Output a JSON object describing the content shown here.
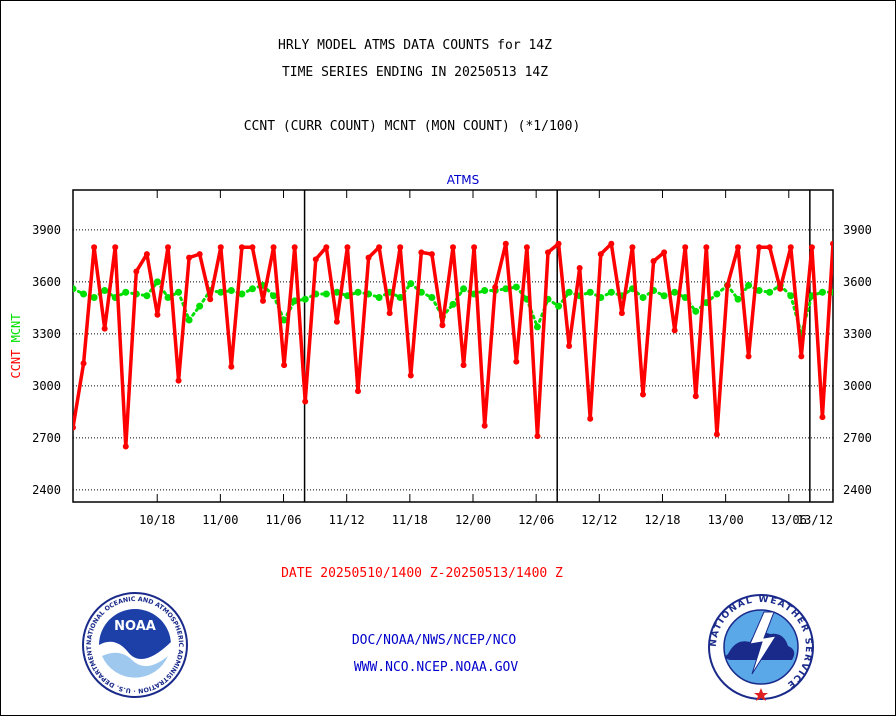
{
  "header": {
    "title_line1": "HRLY MODEL ATMS DATA COUNTS for 14Z",
    "title_line2": "TIME SERIES ENDING IN 20250513 14Z",
    "subtitle": "CCNT (CURR COUNT) MCNT (MON COUNT) (*1/100)"
  },
  "footer": {
    "date_range": "DATE 20250510/1400 Z-20250513/1400 Z",
    "org_line": "DOC/NOAA/NWS/NCEP/NCO",
    "url_line": "WWW.NCO.NCEP.NOAA.GOV"
  },
  "logos": {
    "left": {
      "name": "NOAA",
      "ring_text": "NATIONAL OCEANIC AND ATMOSPHERIC ADMINISTRATION · U.S. DEPARTMENT OF COMMERCE"
    },
    "right": {
      "ring_text": "NATIONAL WEATHER SERVICE"
    }
  },
  "chart_data": {
    "type": "line",
    "title": "ATMS",
    "ylabel_series1": "CCNT",
    "ylabel_series2": "MCNT",
    "ylim": [
      2330,
      4130
    ],
    "yticks": [
      2400,
      2700,
      3000,
      3300,
      3600,
      3900
    ],
    "x_range_hours": [
      -4,
      68.2
    ],
    "x_tick_labels": [
      "10/18",
      "11/00",
      "11/06",
      "11/12",
      "11/18",
      "12/00",
      "12/06",
      "12/12",
      "12/18",
      "13/00",
      "13/06",
      "13/12"
    ],
    "x_tick_hours": [
      4,
      10,
      16,
      22,
      28,
      34,
      40,
      46,
      52,
      58,
      64,
      70
    ],
    "day_boundary_hours": [
      18,
      42,
      66
    ],
    "grid": "horizontal-dotted",
    "colors": {
      "ccnt": "#ff0000",
      "mcnt": "#00e000",
      "title": "#0000cc",
      "axis": "#000000"
    },
    "series": [
      {
        "name": "CCNT",
        "color": "#ff0000",
        "values": [
          2760,
          3130,
          3800,
          3330,
          3800,
          2650,
          3660,
          3760,
          3410,
          3800,
          3030,
          3740,
          3760,
          3500,
          3800,
          3110,
          3800,
          3800,
          3490,
          3800,
          3120,
          3800,
          2910,
          3730,
          3800,
          3370,
          3800,
          2970,
          3740,
          3800,
          3420,
          3800,
          3060,
          3770,
          3760,
          3350,
          3800,
          3120,
          3800,
          2770,
          3570,
          3820,
          3140,
          3800,
          2710,
          3770,
          3820,
          3230,
          3680,
          2810,
          3760,
          3820,
          3420,
          3800,
          2950,
          3720,
          3770,
          3320,
          3800,
          2940,
          3800,
          2720,
          3580,
          3800,
          3170,
          3800,
          3800,
          3560,
          3800,
          3170,
          3800,
          2820,
          3820
        ]
      },
      {
        "name": "MCNT",
        "color": "#00e000",
        "values": [
          3560,
          3530,
          3510,
          3550,
          3510,
          3540,
          3530,
          3520,
          3600,
          3510,
          3540,
          3380,
          3460,
          3550,
          3540,
          3550,
          3530,
          3560,
          3580,
          3520,
          3380,
          3490,
          3500,
          3530,
          3530,
          3540,
          3520,
          3540,
          3530,
          3510,
          3540,
          3510,
          3590,
          3540,
          3510,
          3400,
          3470,
          3560,
          3530,
          3550,
          3550,
          3560,
          3570,
          3500,
          3340,
          3500,
          3460,
          3540,
          3520,
          3540,
          3510,
          3540,
          3520,
          3560,
          3510,
          3550,
          3520,
          3540,
          3510,
          3430,
          3480,
          3530,
          3580,
          3500,
          3580,
          3550,
          3540,
          3580,
          3520,
          3300,
          3520,
          3540,
          3540
        ]
      }
    ]
  }
}
